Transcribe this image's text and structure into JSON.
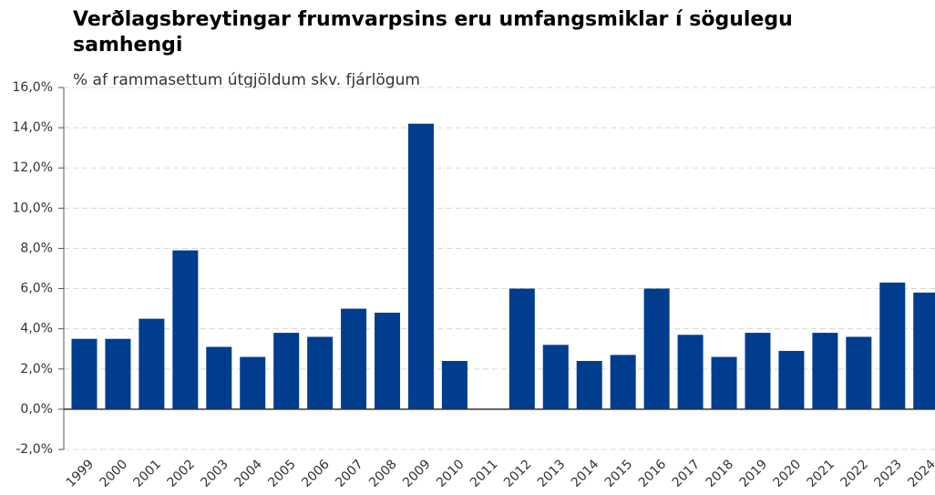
{
  "chart_data": {
    "type": "bar",
    "title": "Verðlagsbreytingar frumvarpsins eru umfangsmiklar í sögulegu samhengi",
    "subtitle": "% af rammasettum útgjöldum skv. fjárlögum",
    "categories": [
      "1999",
      "2000",
      "2001",
      "2002",
      "2003",
      "2004",
      "2005",
      "2006",
      "2007",
      "2008",
      "2009",
      "2010",
      "2011",
      "2012",
      "2013",
      "2014",
      "2015",
      "2016",
      "2017",
      "2018",
      "2019",
      "2020",
      "2021",
      "2022",
      "2023",
      "2024"
    ],
    "values": [
      3.5,
      3.5,
      4.5,
      7.9,
      3.1,
      2.6,
      3.8,
      3.6,
      5.0,
      4.8,
      14.2,
      2.4,
      0,
      6.0,
      3.2,
      2.4,
      2.7,
      6.0,
      3.7,
      2.6,
      3.8,
      2.9,
      3.8,
      3.6,
      6.3,
      5.8
    ],
    "color": "#003d8f",
    "ylim": [
      -2,
      16
    ],
    "yticks": [
      {
        "value": -2,
        "label": "-2,0%"
      },
      {
        "value": 0,
        "label": "0,0%"
      },
      {
        "value": 2,
        "label": "2,0%"
      },
      {
        "value": 4,
        "label": "4,0%"
      },
      {
        "value": 6,
        "label": "6,0%"
      },
      {
        "value": 8,
        "label": "8,0%"
      },
      {
        "value": 10,
        "label": "10,0%"
      },
      {
        "value": 12,
        "label": "12,0%"
      },
      {
        "value": 14,
        "label": "14,0%"
      },
      {
        "value": 16,
        "label": "16,0%"
      }
    ],
    "grid": true
  }
}
